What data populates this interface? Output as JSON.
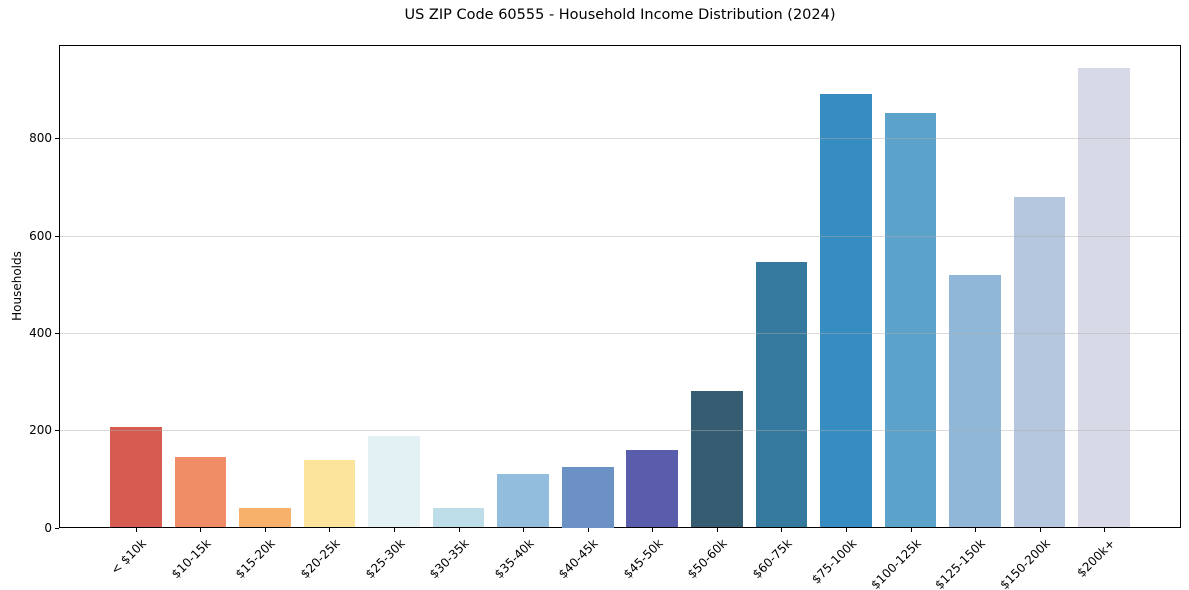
{
  "chart_data": {
    "type": "bar",
    "title": "US ZIP Code 60555 - Household Income Distribution (2024)",
    "xlabel": "",
    "ylabel": "Households",
    "categories": [
      "< $10k",
      "$10-15k",
      "$15-20k",
      "$20-25k",
      "$25-30k",
      "$30-35k",
      "$35-40k",
      "$40-45k",
      "$45-50k",
      "$50-60k",
      "$60-75k",
      "$75-100k",
      "$100-125k",
      "$125-150k",
      "$150-200k",
      "$200k+"
    ],
    "values": [
      207,
      145,
      41,
      138,
      189,
      41,
      111,
      124,
      160,
      281,
      545,
      892,
      853,
      519,
      679,
      945
    ],
    "bar_colors": [
      "#d65c52",
      "#f18d66",
      "#f8b16a",
      "#fce49d",
      "#e4f1f4",
      "#bddee9",
      "#93bddc",
      "#6c92c5",
      "#5a5dab",
      "#365c72",
      "#36799f",
      "#378cc1",
      "#5ba3cb",
      "#90b7d8",
      "#b5c7de",
      "#d7dae6"
    ],
    "yticks": [
      0,
      200,
      400,
      600,
      800
    ],
    "ylim": [
      0,
      992
    ],
    "grid": "horizontal-only",
    "legend": "none",
    "background_color": "#ffffff",
    "axis_color": "#000000",
    "grid_color": "#b0b0b0"
  }
}
